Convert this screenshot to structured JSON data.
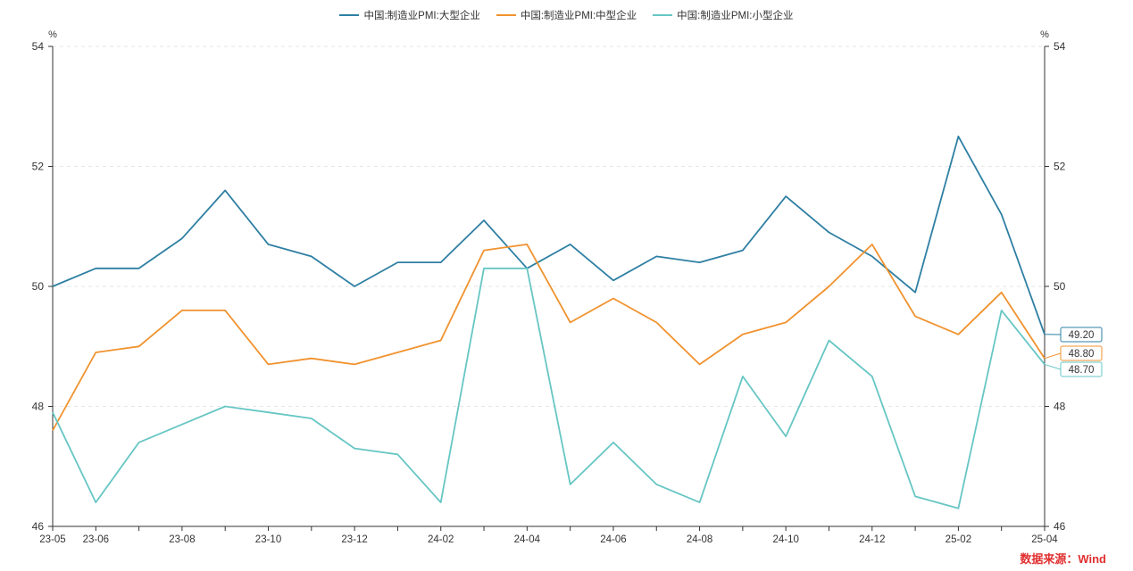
{
  "source_label": "数据来源：Wind",
  "colors": {
    "large": "#2e7fa3",
    "medium": "#f0922e",
    "small": "#66c6c4",
    "axis": "#333333",
    "grid": "#e6e6e6"
  },
  "chart_data": {
    "type": "line",
    "y_unit_left": "%",
    "y_unit_right": "%",
    "ylim": [
      46,
      54
    ],
    "yticks": [
      46,
      48,
      50,
      52,
      54
    ],
    "x": [
      "23-05",
      "23-06",
      "23-07",
      "23-08",
      "23-09",
      "23-10",
      "23-11",
      "23-12",
      "24-01",
      "24-02",
      "24-03",
      "24-04",
      "24-05",
      "24-06",
      "24-07",
      "24-08",
      "24-09",
      "24-10",
      "24-11",
      "24-12",
      "25-01",
      "25-02",
      "25-03",
      "25-04"
    ],
    "xtick_labels": [
      "23-05",
      "23-06",
      "23-08",
      "23-10",
      "23-12",
      "24-02",
      "24-04",
      "24-06",
      "24-08",
      "24-10",
      "24-12",
      "25-02",
      "25-04"
    ],
    "legend_position": "top",
    "grid": true,
    "series": [
      {
        "name": "中国:制造业PMI:大型企业",
        "key": "large",
        "end_label": "49.20",
        "values": [
          50.0,
          50.3,
          50.3,
          50.8,
          51.6,
          50.7,
          50.5,
          50.0,
          50.4,
          50.4,
          51.1,
          50.3,
          50.7,
          50.1,
          50.5,
          50.4,
          50.6,
          51.5,
          50.9,
          50.5,
          49.9,
          52.5,
          51.2,
          49.2
        ]
      },
      {
        "name": "中国:制造业PMI:中型企业",
        "key": "medium",
        "end_label": "48.80",
        "values": [
          47.6,
          48.9,
          49.0,
          49.6,
          49.6,
          48.7,
          48.8,
          48.7,
          48.9,
          49.1,
          50.6,
          50.7,
          49.4,
          49.8,
          49.4,
          48.7,
          49.2,
          49.4,
          50.0,
          50.7,
          49.5,
          49.2,
          49.9,
          48.8
        ]
      },
      {
        "name": "中国:制造业PMI:小型企业",
        "key": "small",
        "end_label": "48.70",
        "values": [
          47.9,
          46.4,
          47.4,
          47.7,
          48.0,
          47.9,
          47.8,
          47.3,
          47.2,
          46.4,
          50.3,
          50.3,
          46.7,
          47.4,
          46.7,
          46.4,
          48.5,
          47.5,
          49.1,
          48.5,
          46.5,
          46.3,
          49.6,
          48.7
        ]
      }
    ]
  }
}
